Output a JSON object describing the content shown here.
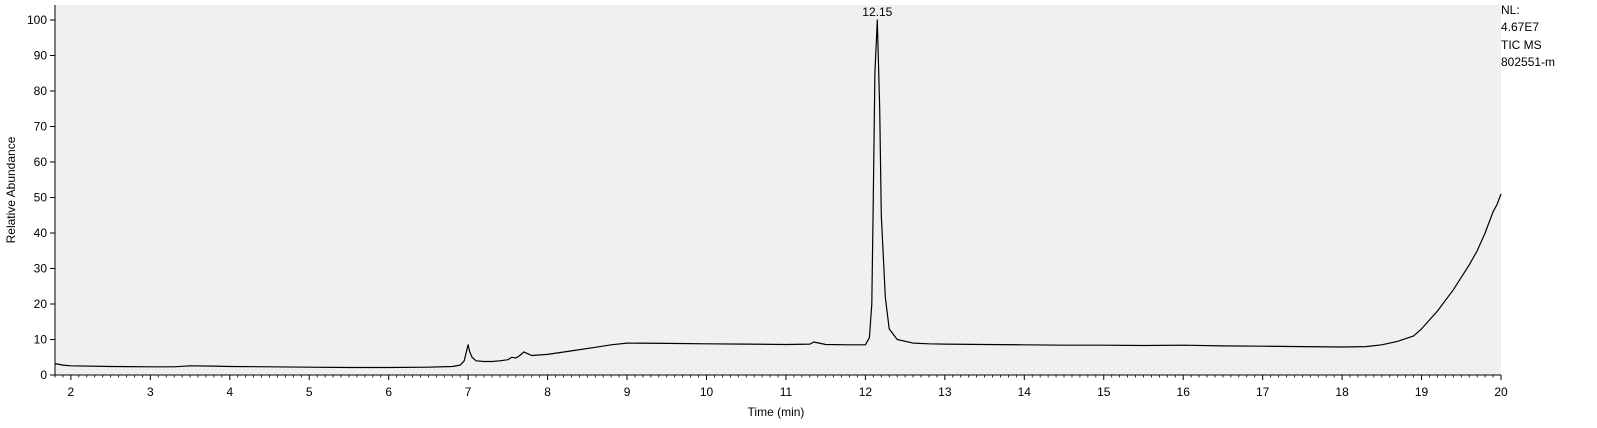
{
  "chart_data": {
    "type": "line",
    "title": "",
    "xlabel": "Time (min)",
    "ylabel": "Relative Abundance",
    "xlim": [
      1.8,
      20
    ],
    "ylim": [
      0,
      100
    ],
    "x_ticks": [
      2,
      3,
      4,
      5,
      6,
      7,
      8,
      9,
      10,
      11,
      12,
      13,
      14,
      15,
      16,
      17,
      18,
      19,
      20
    ],
    "y_ticks": [
      0,
      10,
      20,
      30,
      40,
      50,
      60,
      70,
      80,
      90,
      100
    ],
    "grid": false,
    "background": "#f0f0f0",
    "line_color": "#000000",
    "series": [
      {
        "x": [
          1.8,
          1.9,
          2.0,
          2.5,
          3.0,
          3.3,
          3.5,
          3.8,
          4.0,
          4.5,
          5.0,
          5.5,
          6.0,
          6.5,
          6.8,
          6.9,
          6.95,
          7.0,
          7.02,
          7.05,
          7.1,
          7.2,
          7.3,
          7.4,
          7.5,
          7.55,
          7.6,
          7.65,
          7.7,
          7.75,
          7.8,
          8.0,
          8.3,
          8.6,
          8.8,
          9.0,
          9.5,
          10.0,
          10.5,
          11.0,
          11.3,
          11.35,
          11.5,
          11.8,
          12.0,
          12.05,
          12.08,
          12.1,
          12.12,
          12.15,
          12.18,
          12.2,
          12.25,
          12.3,
          12.4,
          12.6,
          12.8,
          13.0,
          13.5,
          14.0,
          14.5,
          15.0,
          15.5,
          16.0,
          16.5,
          17.0,
          17.5,
          18.0,
          18.3,
          18.5,
          18.7,
          18.9,
          19.0,
          19.2,
          19.4,
          19.6,
          19.7,
          19.8,
          19.9,
          19.95,
          20.0
        ],
        "y": [
          3.2,
          2.8,
          2.6,
          2.4,
          2.3,
          2.3,
          2.6,
          2.5,
          2.4,
          2.3,
          2.2,
          2.1,
          2.1,
          2.2,
          2.4,
          2.8,
          4.0,
          8.5,
          6.5,
          5.0,
          4.0,
          3.8,
          3.8,
          4.0,
          4.3,
          5.0,
          4.8,
          5.5,
          6.5,
          6.0,
          5.5,
          5.8,
          6.8,
          7.8,
          8.5,
          9.0,
          8.9,
          8.8,
          8.7,
          8.6,
          8.7,
          9.3,
          8.6,
          8.5,
          8.5,
          10.5,
          20.0,
          50.0,
          85.0,
          100.0,
          75.0,
          45.0,
          22.0,
          13.0,
          10.0,
          9.0,
          8.8,
          8.7,
          8.6,
          8.5,
          8.4,
          8.4,
          8.3,
          8.4,
          8.2,
          8.1,
          8.0,
          7.9,
          8.0,
          8.5,
          9.5,
          11.0,
          13.0,
          18.0,
          24.0,
          31.0,
          35.0,
          40.0,
          46.0,
          48.0,
          51.0
        ]
      }
    ],
    "annotations": [
      {
        "x": 12.15,
        "y": 100.0,
        "text": "12.15"
      }
    ]
  },
  "info": {
    "nl_label": "NL:",
    "nl_value": "4.67E7",
    "scan_type": "TIC  MS",
    "file_name": "802551-m"
  }
}
